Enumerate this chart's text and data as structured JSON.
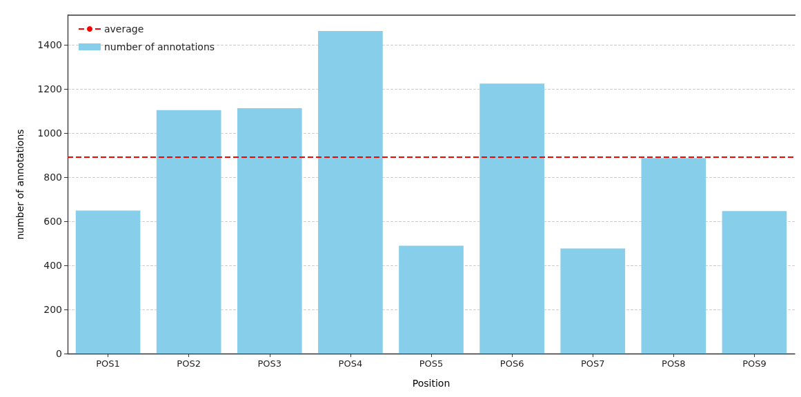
{
  "chart_data": {
    "type": "bar",
    "xlabel": "Position",
    "ylabel": "number of annotations",
    "categories": [
      "POS1",
      "POS2",
      "POS3",
      "POS4",
      "POS5",
      "POS6",
      "POS7",
      "POS8",
      "POS9"
    ],
    "series": [
      {
        "name": "number of annotations",
        "color": "#87ceeb",
        "values": [
          649,
          1104,
          1113,
          1463,
          489,
          1225,
          477,
          887,
          646
        ]
      }
    ],
    "ylim": [
      0,
      1535
    ],
    "yticks": [
      0,
      200,
      400,
      600,
      800,
      1000,
      1200,
      1400
    ],
    "grid": "y",
    "legend": "top left",
    "ref_lines": [
      {
        "axis": "y",
        "value": 893,
        "label": "average",
        "color": "#ff0000",
        "line_style": "dashed"
      }
    ]
  }
}
